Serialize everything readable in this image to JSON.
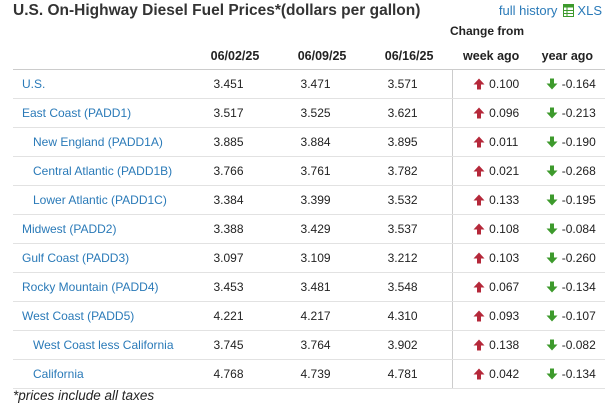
{
  "title": "U.S. On-Highway Diesel Fuel Prices*(dollars per gallon)",
  "links": {
    "full_history": "full history",
    "xls": "XLS"
  },
  "change_header": "Change from",
  "columns": {
    "d1": "06/02/25",
    "d2": "06/09/25",
    "d3": "06/16/25",
    "week": "week ago",
    "year": "year ago"
  },
  "rows": [
    {
      "region": "U.S.",
      "sub": false,
      "v1": "3.451",
      "v2": "3.471",
      "v3": "3.571",
      "week": "0.100",
      "week_dir": "up",
      "year": "-0.164",
      "year_dir": "down"
    },
    {
      "region": "East Coast (PADD1)",
      "sub": false,
      "v1": "3.517",
      "v2": "3.525",
      "v3": "3.621",
      "week": "0.096",
      "week_dir": "up",
      "year": "-0.213",
      "year_dir": "down"
    },
    {
      "region": "New England (PADD1A)",
      "sub": true,
      "v1": "3.885",
      "v2": "3.884",
      "v3": "3.895",
      "week": "0.011",
      "week_dir": "up",
      "year": "-0.190",
      "year_dir": "down"
    },
    {
      "region": "Central Atlantic (PADD1B)",
      "sub": true,
      "v1": "3.766",
      "v2": "3.761",
      "v3": "3.782",
      "week": "0.021",
      "week_dir": "up",
      "year": "-0.268",
      "year_dir": "down"
    },
    {
      "region": "Lower Atlantic (PADD1C)",
      "sub": true,
      "v1": "3.384",
      "v2": "3.399",
      "v3": "3.532",
      "week": "0.133",
      "week_dir": "up",
      "year": "-0.195",
      "year_dir": "down"
    },
    {
      "region": "Midwest (PADD2)",
      "sub": false,
      "v1": "3.388",
      "v2": "3.429",
      "v3": "3.537",
      "week": "0.108",
      "week_dir": "up",
      "year": "-0.084",
      "year_dir": "down"
    },
    {
      "region": "Gulf Coast (PADD3)",
      "sub": false,
      "v1": "3.097",
      "v2": "3.109",
      "v3": "3.212",
      "week": "0.103",
      "week_dir": "up",
      "year": "-0.260",
      "year_dir": "down"
    },
    {
      "region": "Rocky Mountain (PADD4)",
      "sub": false,
      "v1": "3.453",
      "v2": "3.481",
      "v3": "3.548",
      "week": "0.067",
      "week_dir": "up",
      "year": "-0.134",
      "year_dir": "down"
    },
    {
      "region": "West Coast (PADD5)",
      "sub": false,
      "v1": "4.221",
      "v2": "4.217",
      "v3": "4.310",
      "week": "0.093",
      "week_dir": "up",
      "year": "-0.107",
      "year_dir": "down"
    },
    {
      "region": "West Coast less California",
      "sub": true,
      "v1": "3.745",
      "v2": "3.764",
      "v3": "3.902",
      "week": "0.138",
      "week_dir": "up",
      "year": "-0.082",
      "year_dir": "down"
    },
    {
      "region": "California",
      "sub": true,
      "v1": "4.768",
      "v2": "4.739",
      "v3": "4.781",
      "week": "0.042",
      "week_dir": "up",
      "year": "-0.134",
      "year_dir": "down"
    }
  ],
  "footnote": "*prices include all taxes",
  "colors": {
    "link": "#2a7ab8",
    "up_arrow": "#b5283a",
    "down_arrow": "#3d9a2c"
  },
  "icons": {
    "up": "arrow-up-icon",
    "down": "arrow-down-icon",
    "xls": "spreadsheet-icon"
  }
}
